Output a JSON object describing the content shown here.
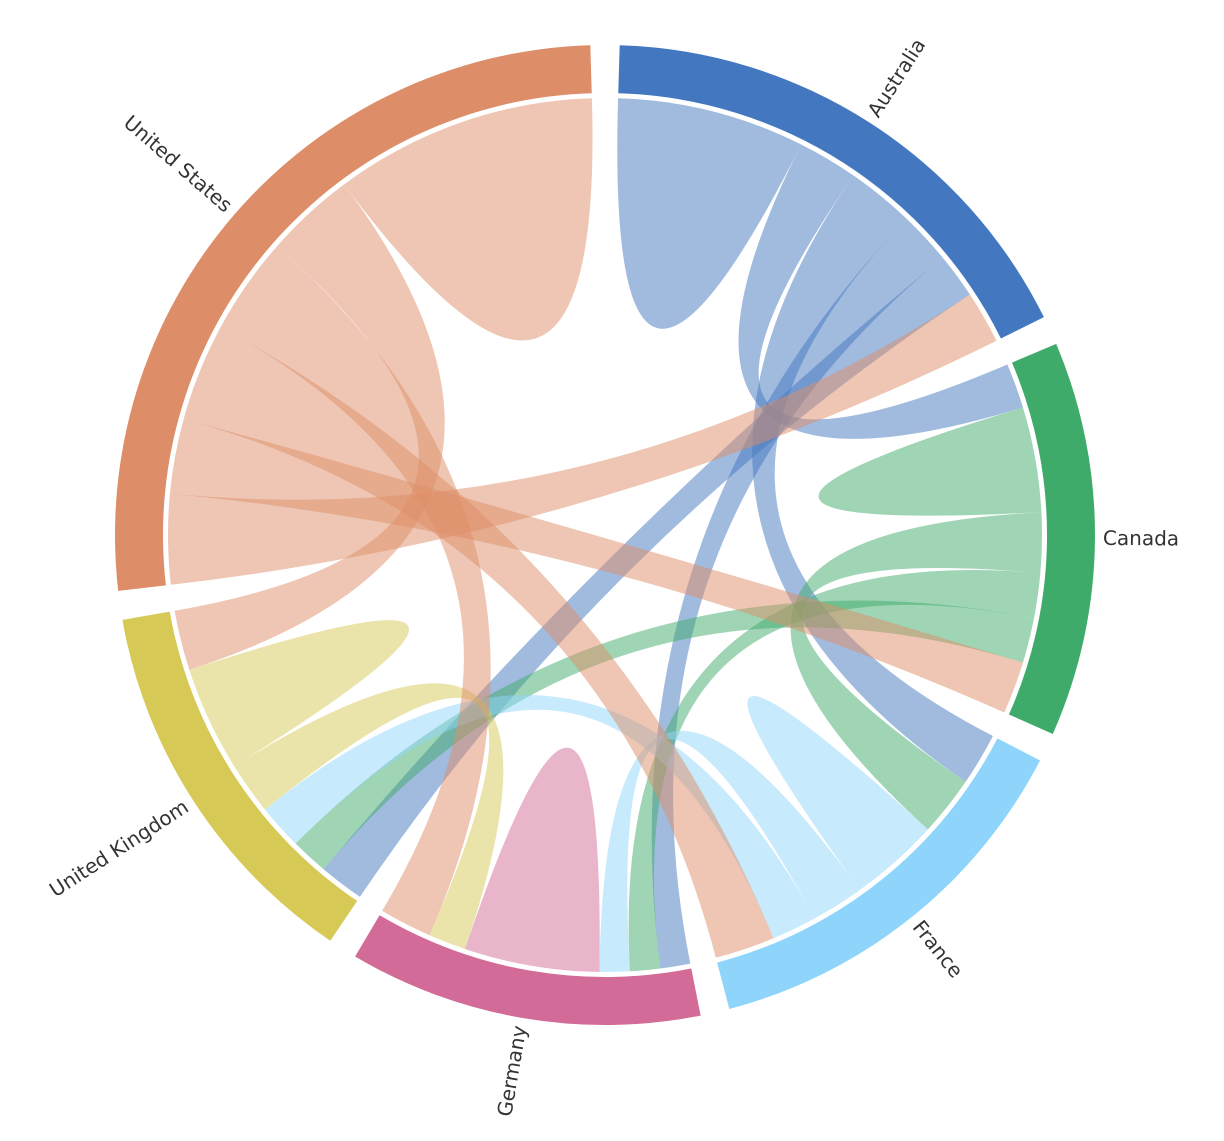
{
  "chart_data": {
    "type": "chord",
    "nodes": [
      {
        "name": "Australia",
        "color": "#4378c0"
      },
      {
        "name": "Canada",
        "color": "#3fab6b"
      },
      {
        "name": "France",
        "color": "#8fd5fb"
      },
      {
        "name": "Germany",
        "color": "#d36b98"
      },
      {
        "name": "United Kingdom",
        "color": "#d6c956"
      },
      {
        "name": "United States",
        "color": "#dd8d68"
      }
    ],
    "matrix": [
      [
        25,
        8,
        9,
        7,
        6,
        7
      ],
      [
        6,
        14,
        8,
        6,
        6,
        7
      ],
      [
        7,
        8,
        12,
        7,
        6,
        8
      ],
      [
        4,
        4,
        4,
        18,
        5,
        7
      ],
      [
        6,
        5,
        6,
        7,
        14,
        8
      ],
      [
        12,
        10,
        13,
        13,
        12,
        35
      ]
    ]
  }
}
